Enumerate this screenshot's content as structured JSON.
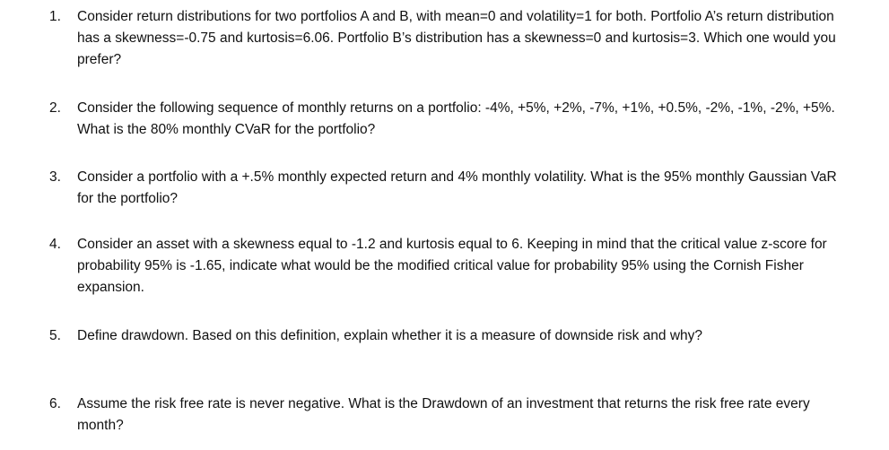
{
  "questions": [
    {
      "number": "1.",
      "text": "Consider return distributions for two portfolios A and B, with mean=0 and volatility=1 for both. Portfolio A’s return distribution has a skewness=-0.75 and kurtosis=6.06. Portfolio B’s distribution has a skewness=0 and kurtosis=3. Which one would you prefer?"
    },
    {
      "number": "2.",
      "text": "Consider the following sequence of monthly returns on a portfolio: -4%, +5%, +2%, -7%, +1%, +0.5%, -2%, -1%, -2%, +5%. What is the 80% monthly CVaR for the portfolio?"
    },
    {
      "number": "3.",
      "text": "Consider a portfolio with a +.5% monthly expected return and 4% monthly volatility. What is the 95% monthly Gaussian VaR for the portfolio?"
    },
    {
      "number": "4.",
      "text": "Consider an asset with a skewness equal to -1.2 and kurtosis equal to 6. Keeping in mind that the critical value z-score for probability 95% is -1.65, indicate what would be the modified critical value for probability 95% using the Cornish Fisher expansion."
    },
    {
      "number": "5.",
      "text": "Define drawdown. Based on this definition, explain whether it is a measure of downside risk and why?"
    },
    {
      "number": "6.",
      "text": "Assume the risk free rate is never negative. What is the Drawdown of an investment that returns the risk free rate every month?"
    }
  ]
}
